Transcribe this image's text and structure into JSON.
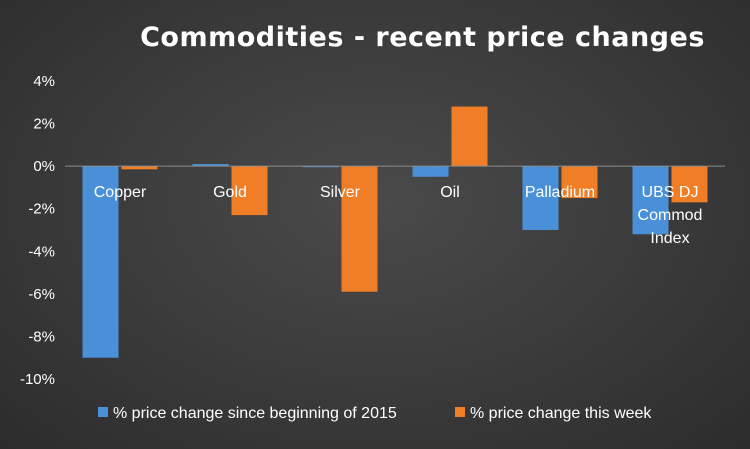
{
  "chart_data": {
    "type": "bar",
    "title": "Commodities - recent price changes",
    "categories": [
      "Copper",
      "Gold",
      "Silver",
      "Oil",
      "Palladium",
      "UBS DJ Commod Index"
    ],
    "category_lines": [
      [
        "Copper"
      ],
      [
        "Gold"
      ],
      [
        "Silver"
      ],
      [
        "Oil"
      ],
      [
        "Palladium"
      ],
      [
        "UBS DJ",
        "Commod",
        "Index"
      ]
    ],
    "series": [
      {
        "name": "% price change since beginning of 2015",
        "color": "#4a90d9",
        "values": [
          -9.0,
          0.1,
          -0.05,
          -0.5,
          -3.0,
          -3.2
        ]
      },
      {
        "name": "% price change this week",
        "color": "#f07e26",
        "values": [
          -0.15,
          -2.3,
          -5.9,
          2.8,
          -1.5,
          -1.7
        ]
      }
    ],
    "yticks": [
      "4%",
      "2%",
      "0%",
      "-2%",
      "-4%",
      "-6%",
      "-8%",
      "-10%"
    ],
    "ylim": [
      -10,
      4
    ],
    "xlabel": "",
    "ylabel": "",
    "grid": false,
    "legend_position": "bottom"
  }
}
